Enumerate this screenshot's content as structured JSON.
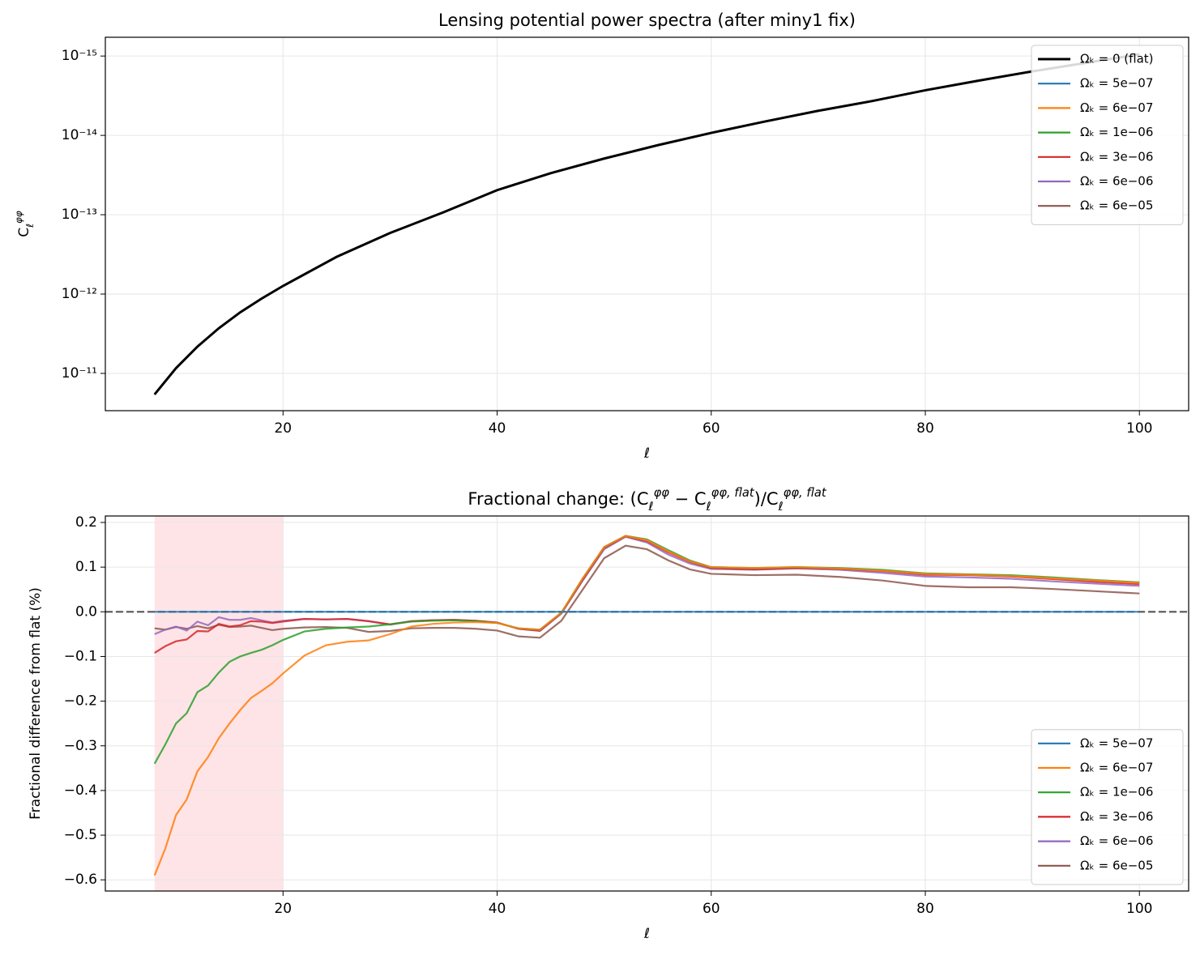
{
  "chart_data": [
    {
      "type": "line",
      "title": "Lensing potential power spectra (after miny1 fix)",
      "xlabel": "ℓ",
      "ylabel": [
        "C",
        "ℓ",
        "φφ"
      ],
      "yscale": "log",
      "grid": true,
      "legend": "upper right",
      "xlim": [
        3.4,
        104.6
      ],
      "ylim": [
        2.95e-11,
        5.8e-16
      ],
      "xticks": [
        20,
        40,
        60,
        80,
        100
      ],
      "yticks": [
        {
          "value": 1e-11,
          "label": "10⁻¹¹"
        },
        {
          "value": 1e-12,
          "label": "10⁻¹²"
        },
        {
          "value": 1e-13,
          "label": "10⁻¹³"
        },
        {
          "value": 1e-14,
          "label": "10⁻¹⁴"
        },
        {
          "value": 1e-15,
          "label": "10⁻¹⁵"
        }
      ],
      "x": [
        8,
        10,
        12,
        14,
        16,
        18,
        20,
        25,
        30,
        35,
        40,
        45,
        50,
        55,
        60,
        65,
        70,
        75,
        80,
        85,
        90,
        95,
        100
      ],
      "series": [
        {
          "name": "Ωₖ = 0 (flat)",
          "color": "#000000",
          "values": [
            1.84e-11,
            8.6e-12,
            4.6e-12,
            2.7e-12,
            1.7e-12,
            1.14e-12,
            7.9e-13,
            3.4e-13,
            1.7e-13,
            9.3e-14,
            4.9e-14,
            3e-14,
            1.96e-14,
            1.33e-14,
            9.3e-15,
            6.7e-15,
            4.9e-15,
            3.7e-15,
            2.7e-15,
            2.04e-15,
            1.56e-15,
            1.22e-15,
            9.5e-16
          ]
        },
        {
          "name": "Ωₖ = 5e−07",
          "color": "#1f77b4",
          "values": [
            1.84e-11,
            8.6e-12,
            4.6e-12,
            2.7e-12,
            1.7e-12,
            1.14e-12,
            7.9e-13,
            3.4e-13,
            1.7e-13,
            9.3e-14,
            4.9e-14,
            3e-14,
            1.96e-14,
            1.33e-14,
            9.3e-15,
            6.7e-15,
            4.9e-15,
            3.7e-15,
            2.7e-15,
            2.04e-15,
            1.56e-15,
            1.22e-15,
            9.5e-16
          ]
        },
        {
          "name": "Ωₖ = 6e−07",
          "color": "#ff7f0e",
          "values": [
            1.84e-11,
            8.6e-12,
            4.6e-12,
            2.7e-12,
            1.7e-12,
            1.14e-12,
            7.9e-13,
            3.4e-13,
            1.7e-13,
            9.3e-14,
            4.9e-14,
            3e-14,
            1.96e-14,
            1.33e-14,
            9.3e-15,
            6.7e-15,
            4.9e-15,
            3.7e-15,
            2.7e-15,
            2.04e-15,
            1.56e-15,
            1.22e-15,
            9.5e-16
          ]
        },
        {
          "name": "Ωₖ = 1e−06",
          "color": "#2ca02c",
          "values": [
            1.84e-11,
            8.6e-12,
            4.6e-12,
            2.7e-12,
            1.7e-12,
            1.14e-12,
            7.9e-13,
            3.4e-13,
            1.7e-13,
            9.3e-14,
            4.9e-14,
            3e-14,
            1.96e-14,
            1.33e-14,
            9.3e-15,
            6.7e-15,
            4.9e-15,
            3.7e-15,
            2.7e-15,
            2.04e-15,
            1.56e-15,
            1.22e-15,
            9.5e-16
          ]
        },
        {
          "name": "Ωₖ = 3e−06",
          "color": "#d62728",
          "values": [
            1.84e-11,
            8.6e-12,
            4.6e-12,
            2.7e-12,
            1.7e-12,
            1.14e-12,
            7.9e-13,
            3.4e-13,
            1.7e-13,
            9.3e-14,
            4.9e-14,
            3e-14,
            1.96e-14,
            1.33e-14,
            9.3e-15,
            6.7e-15,
            4.9e-15,
            3.7e-15,
            2.7e-15,
            2.04e-15,
            1.56e-15,
            1.22e-15,
            9.5e-16
          ]
        },
        {
          "name": "Ωₖ = 6e−06",
          "color": "#9467bd",
          "values": [
            1.84e-11,
            8.6e-12,
            4.6e-12,
            2.7e-12,
            1.7e-12,
            1.14e-12,
            7.9e-13,
            3.4e-13,
            1.7e-13,
            9.3e-14,
            4.9e-14,
            3e-14,
            1.96e-14,
            1.33e-14,
            9.3e-15,
            6.7e-15,
            4.9e-15,
            3.7e-15,
            2.7e-15,
            2.04e-15,
            1.56e-15,
            1.22e-15,
            9.5e-16
          ]
        },
        {
          "name": "Ωₖ = 6e−05",
          "color": "#8c564b",
          "values": [
            1.84e-11,
            8.6e-12,
            4.6e-12,
            2.7e-12,
            1.7e-12,
            1.14e-12,
            7.9e-13,
            3.4e-13,
            1.7e-13,
            9.3e-14,
            4.9e-14,
            3e-14,
            1.96e-14,
            1.33e-14,
            9.3e-15,
            6.7e-15,
            4.9e-15,
            3.7e-15,
            2.7e-15,
            2.04e-15,
            1.56e-15,
            1.22e-15,
            9.5e-16
          ]
        }
      ]
    },
    {
      "type": "line",
      "title": [
        "Fractional change: (C",
        "ℓ",
        "φφ",
        " − C",
        "ℓ",
        "φφ, flat",
        ")/C",
        "ℓ",
        "φφ, flat"
      ],
      "xlabel": "ℓ",
      "ylabel": "Fractional difference from flat (%)",
      "yscale": "linear",
      "grid": true,
      "legend": "lower right",
      "xlim": [
        3.4,
        104.6
      ],
      "ylim": [
        -0.625,
        0.2145
      ],
      "xticks": [
        20,
        40,
        60,
        80,
        100
      ],
      "yticks": [
        0.2,
        0.1,
        {
          "value": 0,
          "label": "0.0"
        },
        {
          "value": -0.1,
          "label": "−0.1"
        },
        {
          "value": -0.2,
          "label": "−0.2"
        },
        {
          "value": -0.3,
          "label": "−0.3"
        },
        {
          "value": -0.4,
          "label": "−0.4"
        },
        {
          "value": -0.5,
          "label": "−0.5"
        },
        {
          "value": -0.6,
          "label": "−0.6"
        }
      ],
      "shade": {
        "x": [
          8,
          20
        ],
        "color": "#ffb3ba"
      },
      "hline": {
        "y": 0,
        "color": "#555555"
      },
      "x": [
        8,
        9,
        10,
        11,
        12,
        13,
        14,
        15,
        16,
        17,
        18,
        19,
        20,
        22,
        24,
        26,
        28,
        30,
        32,
        34,
        36,
        38,
        40,
        42,
        44,
        46,
        48,
        50,
        52,
        54,
        56,
        58,
        60,
        64,
        68,
        72,
        76,
        80,
        84,
        88,
        92,
        96,
        100
      ],
      "series": [
        {
          "name": "Ωₖ = 5e−07",
          "color": "#1f77b4",
          "values": [
            0,
            0,
            0,
            0,
            0,
            0,
            0,
            0,
            0,
            0,
            0,
            0,
            0,
            0,
            0,
            0,
            0,
            0,
            0,
            0,
            0,
            0,
            0,
            0,
            0,
            0,
            0,
            0,
            0,
            0,
            0,
            0,
            0,
            0,
            0,
            0,
            0,
            0,
            0,
            0,
            0,
            0,
            0
          ]
        },
        {
          "name": "Ωₖ = 6e−07",
          "color": "#ff7f0e",
          "values": [
            -0.59,
            -0.53,
            -0.455,
            -0.42,
            -0.357,
            -0.325,
            -0.283,
            -0.25,
            -0.22,
            -0.193,
            -0.177,
            -0.16,
            -0.138,
            -0.098,
            -0.075,
            -0.067,
            -0.064,
            -0.05,
            -0.033,
            -0.027,
            -0.024,
            -0.023,
            -0.025,
            -0.037,
            -0.04,
            -0.002,
            0.075,
            0.145,
            0.17,
            0.16,
            0.135,
            0.113,
            0.1,
            0.098,
            0.1,
            0.097,
            0.092,
            0.085,
            0.083,
            0.08,
            0.075,
            0.07,
            0.065
          ]
        },
        {
          "name": "Ωₖ = 1e−06",
          "color": "#2ca02c",
          "values": [
            -0.34,
            -0.297,
            -0.25,
            -0.227,
            -0.18,
            -0.165,
            -0.136,
            -0.112,
            -0.1,
            -0.092,
            -0.085,
            -0.075,
            -0.063,
            -0.044,
            -0.038,
            -0.035,
            -0.033,
            -0.028,
            -0.022,
            -0.02,
            -0.019,
            -0.021,
            -0.025,
            -0.037,
            -0.04,
            -0.002,
            0.075,
            0.145,
            0.17,
            0.162,
            0.138,
            0.115,
            0.1,
            0.098,
            0.1,
            0.098,
            0.094,
            0.086,
            0.084,
            0.082,
            0.077,
            0.071,
            0.066
          ]
        },
        {
          "name": "Ωₖ = 3e−06",
          "color": "#d62728",
          "values": [
            -0.092,
            -0.077,
            -0.066,
            -0.062,
            -0.043,
            -0.044,
            -0.027,
            -0.033,
            -0.03,
            -0.021,
            -0.022,
            -0.025,
            -0.022,
            -0.016,
            -0.017,
            -0.016,
            -0.021,
            -0.028,
            -0.021,
            -0.019,
            -0.018,
            -0.02,
            -0.024,
            -0.038,
            -0.042,
            -0.003,
            0.072,
            0.143,
            0.169,
            0.158,
            0.133,
            0.112,
            0.098,
            0.095,
            0.098,
            0.096,
            0.091,
            0.083,
            0.082,
            0.079,
            0.073,
            0.067,
            0.062
          ]
        },
        {
          "name": "Ωₖ = 6e−06",
          "color": "#9467bd",
          "values": [
            -0.05,
            -0.04,
            -0.033,
            -0.042,
            -0.022,
            -0.03,
            -0.012,
            -0.018,
            -0.018,
            -0.014,
            -0.019,
            -0.024,
            -0.02,
            -0.016,
            -0.017,
            -0.016,
            -0.021,
            -0.029,
            -0.021,
            -0.019,
            -0.018,
            -0.02,
            -0.024,
            -0.038,
            -0.043,
            -0.004,
            0.07,
            0.14,
            0.168,
            0.155,
            0.128,
            0.108,
            0.096,
            0.094,
            0.097,
            0.094,
            0.087,
            0.079,
            0.077,
            0.074,
            0.068,
            0.063,
            0.058
          ]
        },
        {
          "name": "Ωₖ = 6e−05",
          "color": "#8c564b",
          "values": [
            -0.037,
            -0.04,
            -0.034,
            -0.038,
            -0.032,
            -0.037,
            -0.029,
            -0.034,
            -0.033,
            -0.031,
            -0.036,
            -0.041,
            -0.038,
            -0.035,
            -0.034,
            -0.036,
            -0.045,
            -0.043,
            -0.037,
            -0.036,
            -0.036,
            -0.038,
            -0.042,
            -0.055,
            -0.058,
            -0.02,
            0.05,
            0.12,
            0.148,
            0.14,
            0.115,
            0.095,
            0.085,
            0.082,
            0.083,
            0.078,
            0.07,
            0.058,
            0.055,
            0.055,
            0.051,
            0.046,
            0.041
          ]
        }
      ]
    }
  ]
}
